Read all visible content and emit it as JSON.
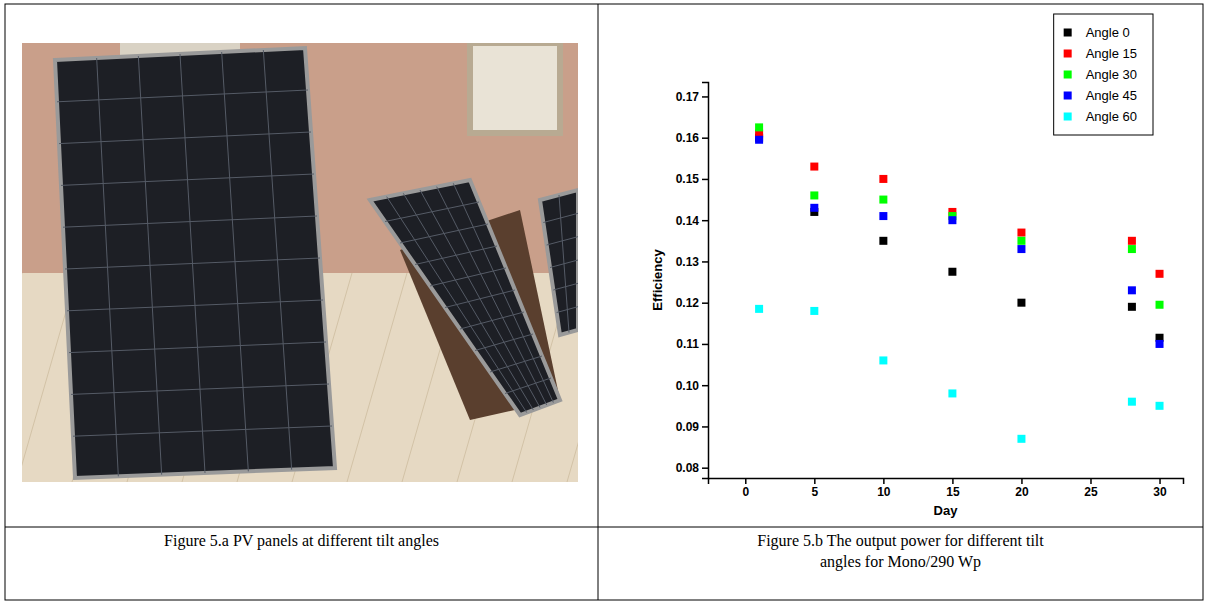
{
  "chart_data": {
    "type": "scatter",
    "x_label": "Day",
    "y_label": "Efficiency",
    "x": [
      1,
      5,
      10,
      15,
      20,
      28,
      30
    ],
    "series": [
      {
        "name": "Angle 0",
        "color": "#000000",
        "values": [
          0.16,
          0.142,
          0.135,
          0.1275,
          0.12,
          0.119,
          0.1115
        ]
      },
      {
        "name": "Angle 15",
        "color": "#ff0000",
        "values": [
          0.161,
          0.153,
          0.15,
          0.142,
          0.137,
          0.135,
          0.127
        ]
      },
      {
        "name": "Angle 30",
        "color": "#00ff00",
        "values": [
          0.1625,
          0.146,
          0.145,
          0.141,
          0.135,
          0.133,
          0.1195
        ]
      },
      {
        "name": "Angle 45",
        "color": "#0000ff",
        "values": [
          0.1595,
          0.143,
          0.141,
          0.14,
          0.133,
          0.123,
          0.11
        ]
      },
      {
        "name": "Angle 60",
        "color": "#00ffff",
        "values": [
          0.1185,
          0.118,
          0.106,
          0.098,
          0.087,
          0.096,
          0.095
        ]
      }
    ],
    "xlim": [
      -2.7,
      31.7
    ],
    "xticks": [
      0,
      5,
      10,
      15,
      20,
      25,
      30
    ],
    "ylim": [
      0.0775,
      0.1735
    ],
    "yticks": [
      0.08,
      0.09,
      {
        "value": 0.1,
        "label": "0.10"
      },
      0.11,
      0.12,
      0.13,
      0.14,
      0.15,
      0.16,
      0.17
    ],
    "marker": "square",
    "legend": "upper right",
    "grid": false
  },
  "captions": [
    "Figure 5.a PV panels at different tilt angles",
    "Figure 5.b The output power for different tilt angles for Mono/290 Wp"
  ]
}
